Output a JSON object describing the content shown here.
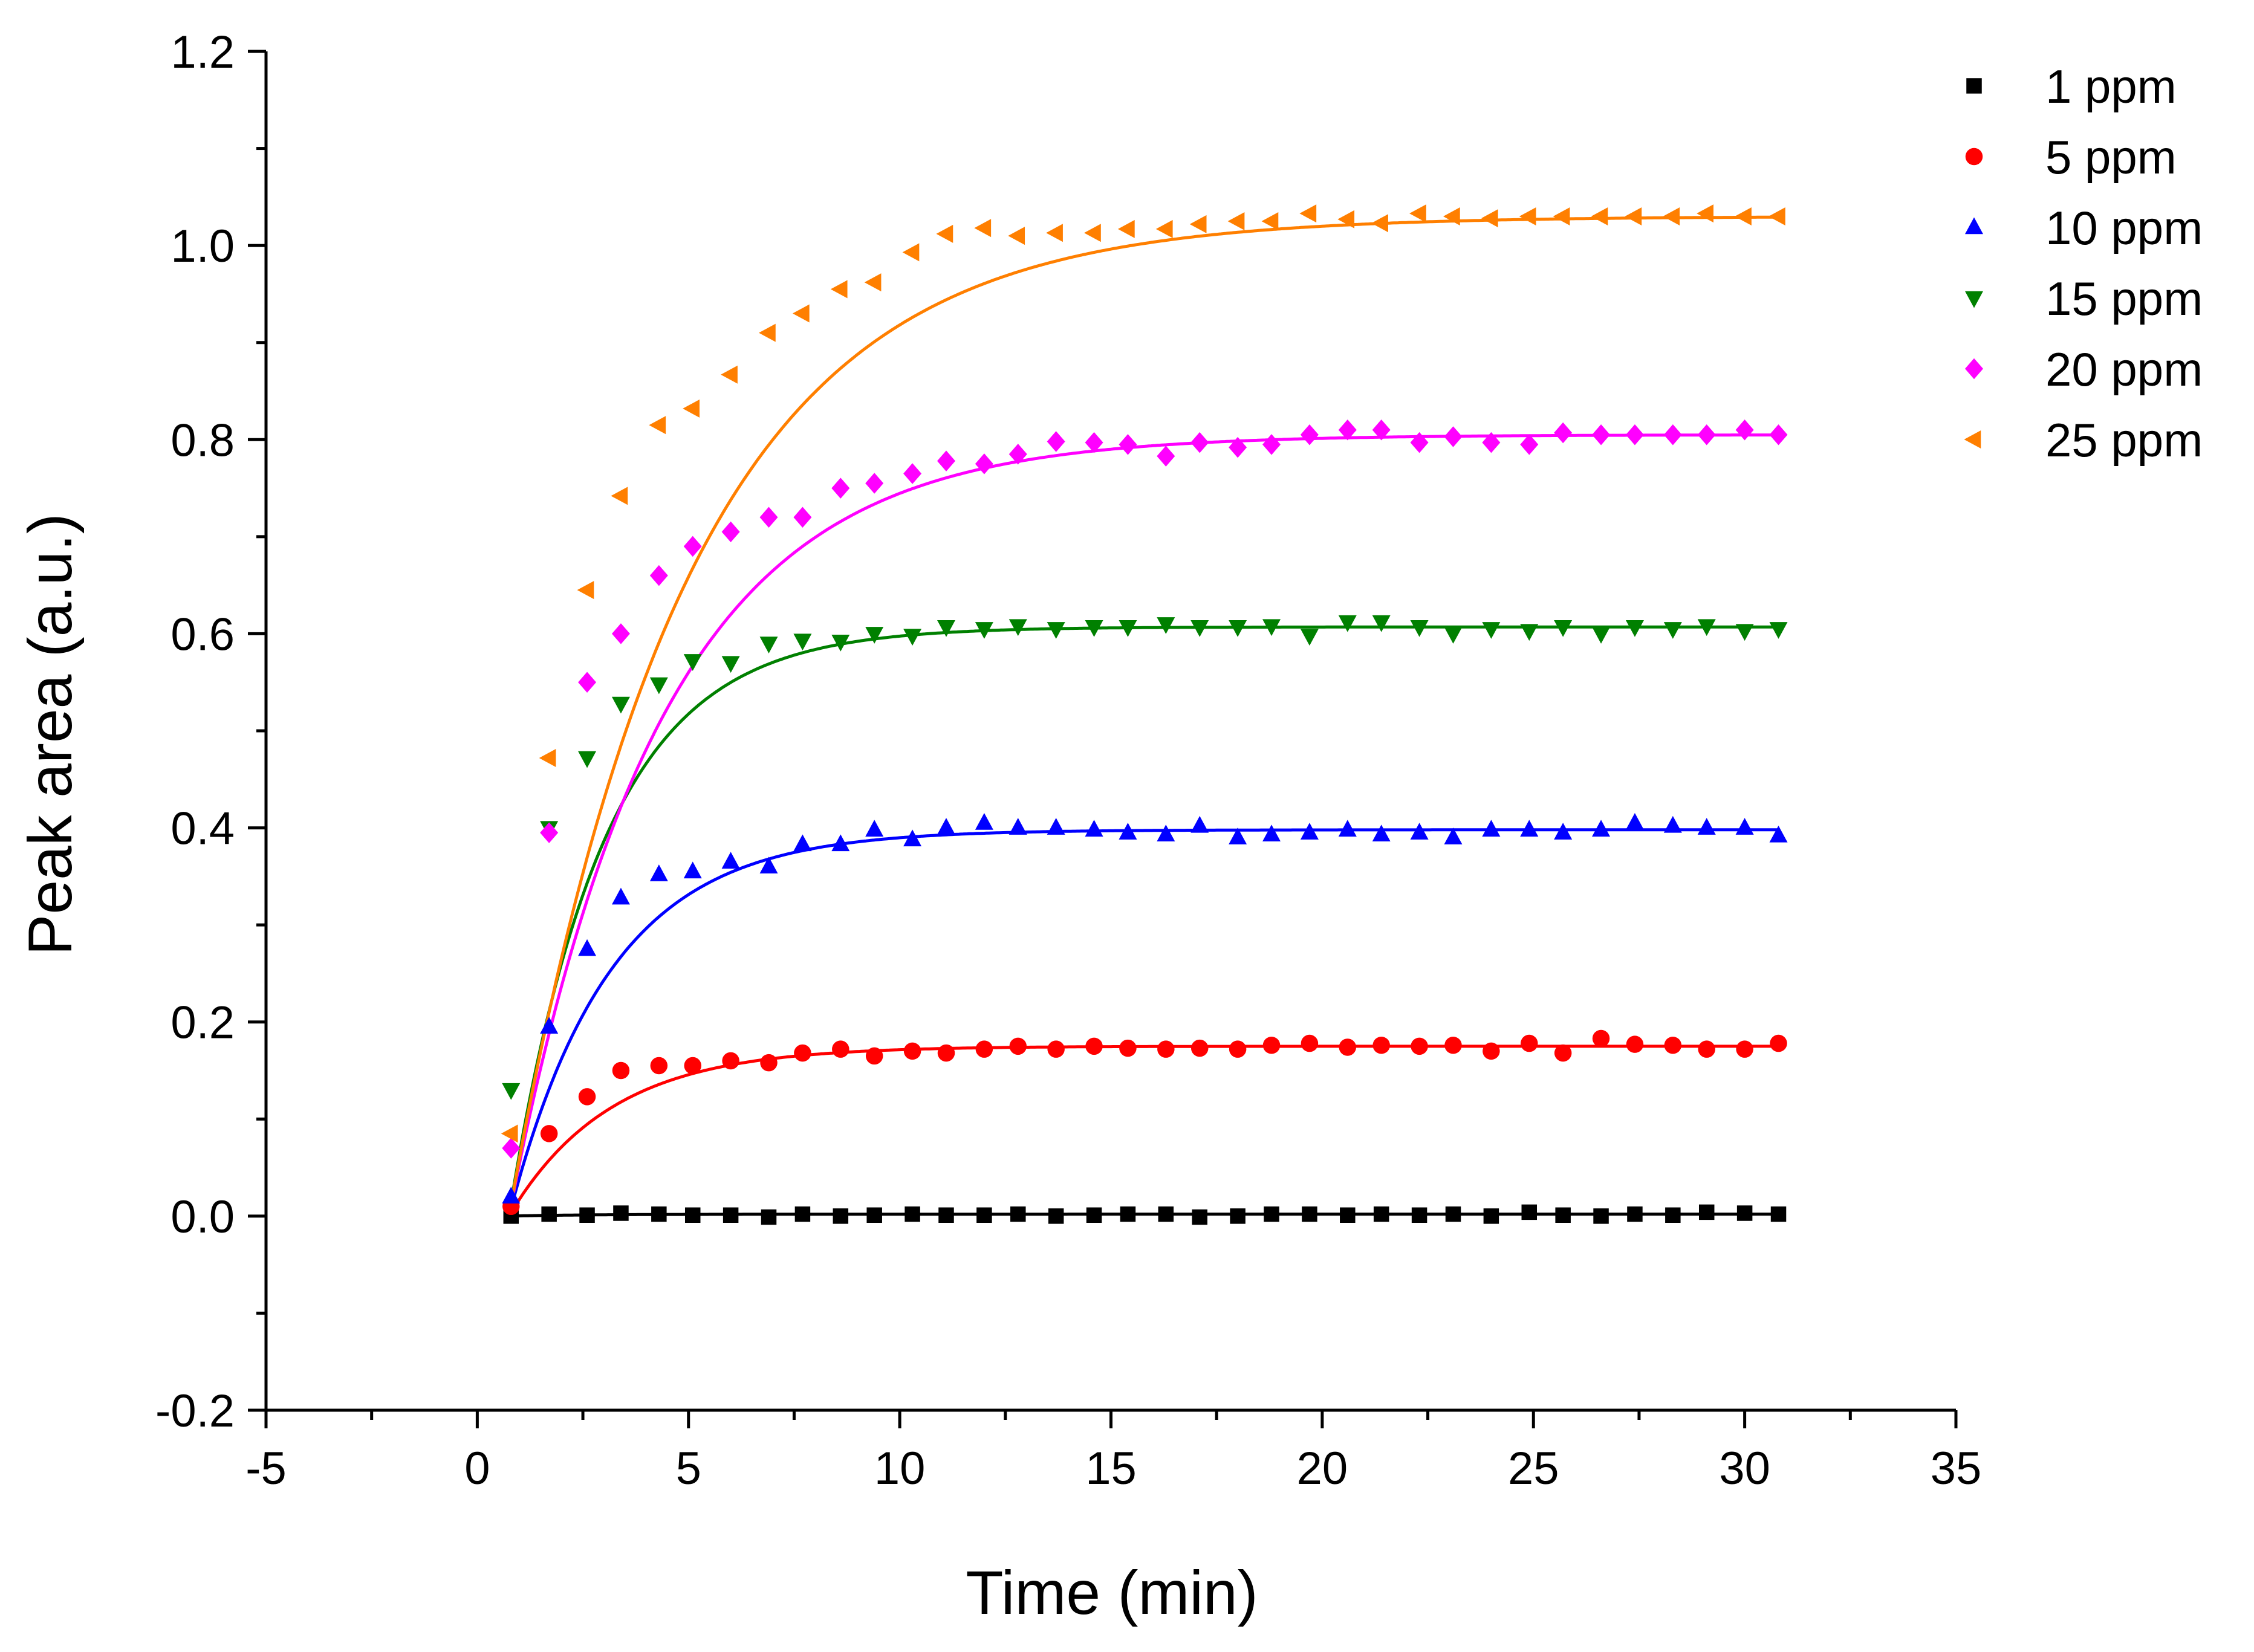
{
  "chart_data": {
    "type": "scatter",
    "title": "",
    "xlabel": "Time (min)",
    "ylabel": "Peak area (a.u.)",
    "xlim": [
      -5,
      35
    ],
    "ylim": [
      -0.2,
      1.2
    ],
    "xticks": [
      -5,
      0,
      5,
      10,
      15,
      20,
      25,
      30,
      35
    ],
    "xtick_labels": [
      "-5",
      "0",
      "5",
      "10",
      "15",
      "20",
      "25",
      "30",
      "35"
    ],
    "yticks": [
      -0.2,
      0.0,
      0.2,
      0.4,
      0.6,
      0.8,
      1.0,
      1.2
    ],
    "ytick_labels": [
      "-0.2",
      "0.0",
      "0.2",
      "0.4",
      "0.6",
      "0.8",
      "1.0",
      "1.2"
    ],
    "grid": false,
    "legend_position": "top-right",
    "x": [
      0.8,
      1.7,
      2.6,
      3.4,
      4.3,
      5.1,
      6.0,
      6.9,
      7.7,
      8.6,
      9.4,
      10.3,
      11.1,
      12.0,
      12.8,
      13.7,
      14.6,
      15.4,
      16.3,
      17.1,
      18.0,
      18.8,
      19.7,
      20.6,
      21.4,
      22.3,
      23.1,
      24.0,
      24.9,
      25.7,
      26.6,
      27.4,
      28.3,
      29.1,
      30.0,
      30.8
    ],
    "series": [
      {
        "name": "1 ppm",
        "marker": "square",
        "color": "#000000",
        "fit_a": 0.002,
        "fit_k": 0.5,
        "values": [
          0.0,
          0.002,
          0.001,
          0.003,
          0.002,
          0.001,
          0.001,
          -0.001,
          0.002,
          0.0,
          0.001,
          0.002,
          0.001,
          0.001,
          0.002,
          0.0,
          0.001,
          0.002,
          0.002,
          -0.001,
          0.0,
          0.002,
          0.002,
          0.001,
          0.002,
          0.001,
          0.002,
          0.0,
          0.004,
          0.001,
          0.0,
          0.002,
          0.001,
          0.004,
          0.003,
          0.002
        ]
      },
      {
        "name": "5 ppm",
        "marker": "circle",
        "color": "#ff0000",
        "fit_a": 0.175,
        "fit_k": 0.42,
        "values": [
          0.01,
          0.085,
          0.123,
          0.15,
          0.155,
          0.155,
          0.16,
          0.158,
          0.168,
          0.172,
          0.165,
          0.17,
          0.168,
          0.172,
          0.175,
          0.172,
          0.175,
          0.173,
          0.172,
          0.173,
          0.172,
          0.176,
          0.178,
          0.174,
          0.176,
          0.175,
          0.176,
          0.17,
          0.178,
          0.168,
          0.183,
          0.177,
          0.176,
          0.172,
          0.172,
          0.178
        ]
      },
      {
        "name": "10 ppm",
        "marker": "triangle-up",
        "color": "#0000ff",
        "fit_a": 0.398,
        "fit_k": 0.42,
        "values": [
          0.02,
          0.195,
          0.275,
          0.328,
          0.352,
          0.355,
          0.365,
          0.36,
          0.383,
          0.383,
          0.398,
          0.388,
          0.4,
          0.405,
          0.4,
          0.4,
          0.398,
          0.395,
          0.393,
          0.402,
          0.39,
          0.393,
          0.395,
          0.398,
          0.393,
          0.395,
          0.39,
          0.398,
          0.398,
          0.395,
          0.398,
          0.405,
          0.402,
          0.4,
          0.4,
          0.392
        ]
      },
      {
        "name": "15 ppm",
        "marker": "triangle-down",
        "color": "#008000",
        "fit_a": 0.607,
        "fit_k": 0.45,
        "values": [
          0.13,
          0.4,
          0.472,
          0.528,
          0.548,
          0.572,
          0.57,
          0.59,
          0.593,
          0.592,
          0.6,
          0.598,
          0.607,
          0.605,
          0.608,
          0.605,
          0.607,
          0.607,
          0.61,
          0.607,
          0.607,
          0.608,
          0.598,
          0.612,
          0.612,
          0.607,
          0.6,
          0.605,
          0.603,
          0.607,
          0.6,
          0.607,
          0.605,
          0.608,
          0.603,
          0.605
        ]
      },
      {
        "name": "20 ppm",
        "marker": "diamond",
        "color": "#ff00ff",
        "fit_a": 0.805,
        "fit_k": 0.28,
        "values": [
          0.07,
          0.395,
          0.55,
          0.6,
          0.66,
          0.69,
          0.705,
          0.72,
          0.72,
          0.75,
          0.755,
          0.765,
          0.778,
          0.775,
          0.785,
          0.798,
          0.797,
          0.795,
          0.783,
          0.797,
          0.792,
          0.795,
          0.805,
          0.81,
          0.81,
          0.797,
          0.803,
          0.797,
          0.795,
          0.807,
          0.805,
          0.805,
          0.805,
          0.805,
          0.81,
          0.805
        ]
      },
      {
        "name": "25 ppm",
        "marker": "triangle-left",
        "color": "#ff7f00",
        "fit_a": 1.03,
        "fit_k": 0.24,
        "values": [
          0.085,
          0.472,
          0.645,
          0.742,
          0.815,
          0.832,
          0.867,
          0.91,
          0.93,
          0.955,
          0.962,
          0.993,
          1.012,
          1.018,
          1.01,
          1.013,
          1.013,
          1.017,
          1.017,
          1.022,
          1.025,
          1.025,
          1.033,
          1.027,
          1.023,
          1.033,
          1.03,
          1.028,
          1.03,
          1.03,
          1.03,
          1.03,
          1.03,
          1.033,
          1.03,
          1.03
        ]
      }
    ]
  }
}
